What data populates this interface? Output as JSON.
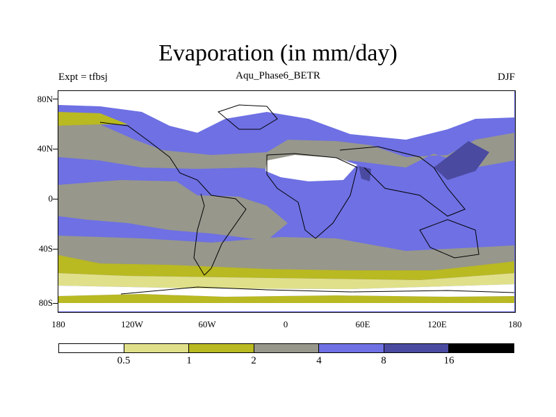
{
  "figure": {
    "title": "Evaporation (in mm/day)",
    "subtitle": "Aqu_Phase6_BETR",
    "left_label": "Expt = tfbsj",
    "right_label": "DJF"
  },
  "axes": {
    "lat_ticks": [
      "80N",
      "40N",
      "0",
      "40S",
      "80S"
    ],
    "lon_ticks": [
      "180",
      "120W",
      "60W",
      "0",
      "60E",
      "120E",
      "180"
    ]
  },
  "colorbar": {
    "labels": [
      "0.5",
      "1",
      "2",
      "4",
      "8",
      "16"
    ],
    "colors": [
      "#ffffff",
      "#e0e08a",
      "#b9b922",
      "#97978c",
      "#6e70e3",
      "#4a4aa0",
      "#000000"
    ]
  },
  "legend_levels_mm_per_day": [
    0.5,
    1,
    2,
    4,
    8,
    16
  ]
}
